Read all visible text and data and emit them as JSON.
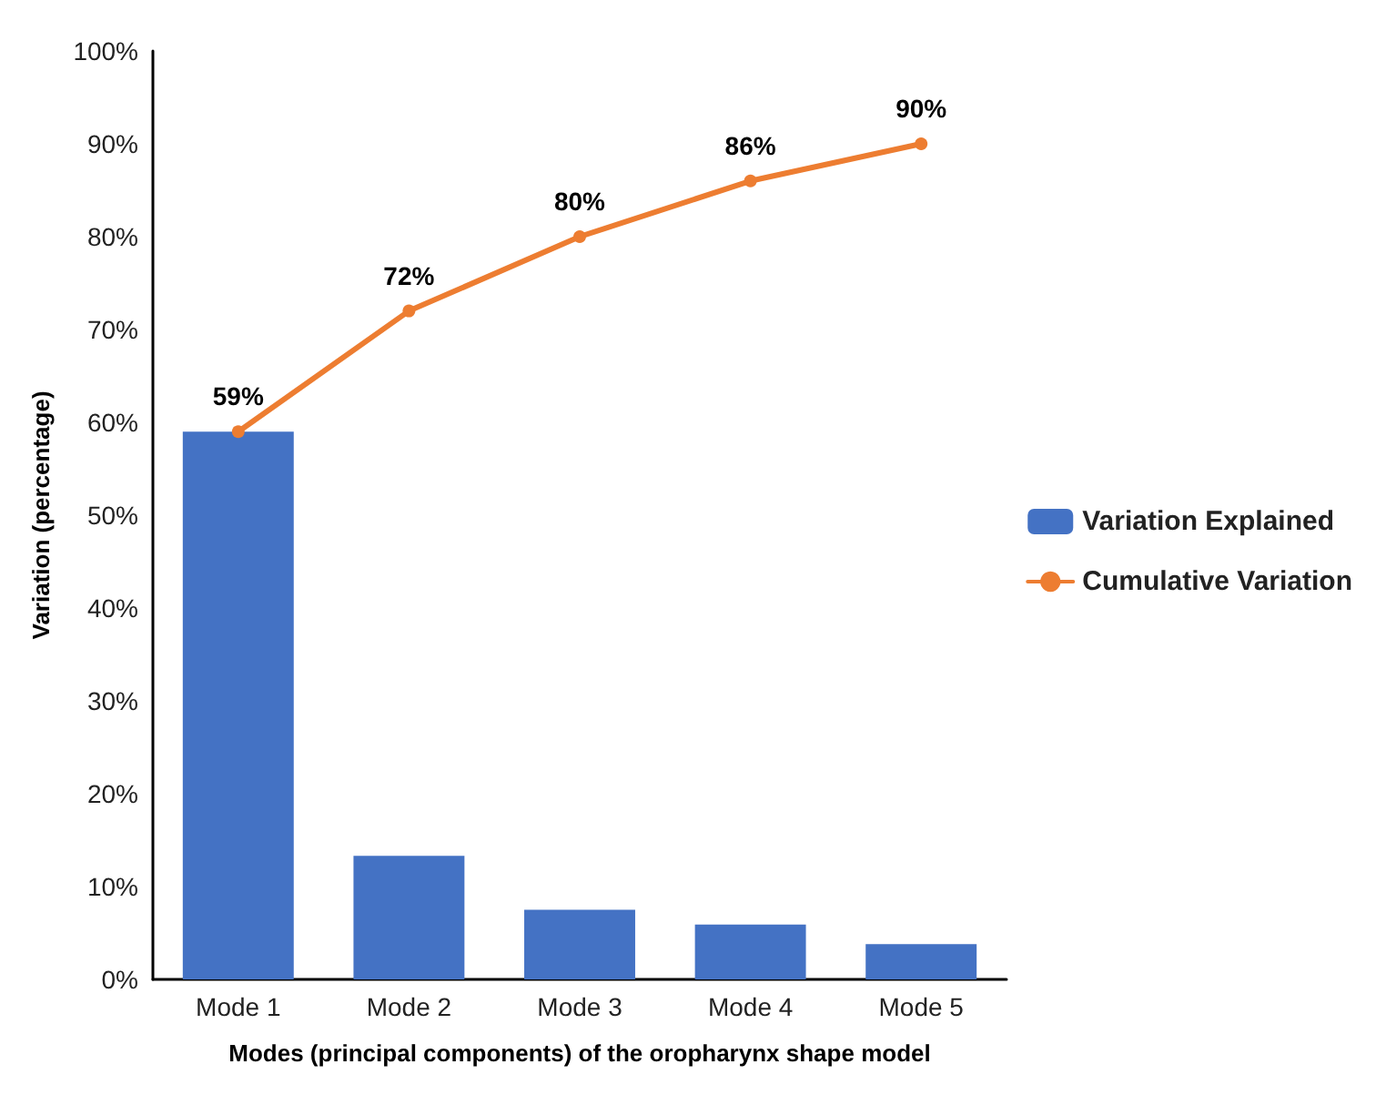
{
  "chart_data": {
    "type": "bar",
    "xlabel": "Modes (principal components) of the oropharynx shape model",
    "ylabel": "Variation (percentage)",
    "categories": [
      "Mode 1",
      "Mode 2",
      "Mode 3",
      "Mode 4",
      "Mode 5"
    ],
    "series": [
      {
        "name": "Variation Explained",
        "color": "#4472c4",
        "values": [
          59,
          13.3,
          7.5,
          5.9,
          3.8
        ]
      },
      {
        "name": "Cumulative Variation",
        "type": "line",
        "color": "#ed7d31",
        "values": [
          59,
          72,
          80,
          86,
          90
        ],
        "value_labels": [
          "59%",
          "72%",
          "80%",
          "86%",
          "90%"
        ],
        "marker": "circle"
      }
    ],
    "ylim": [
      0,
      100
    ],
    "yticks": [
      {
        "value": 0,
        "label": "0%"
      },
      {
        "value": 10,
        "label": "10%"
      },
      {
        "value": 20,
        "label": "20%"
      },
      {
        "value": 30,
        "label": "30%"
      },
      {
        "value": 40,
        "label": "40%"
      },
      {
        "value": 50,
        "label": "50%"
      },
      {
        "value": 60,
        "label": "60%"
      },
      {
        "value": 70,
        "label": "70%"
      },
      {
        "value": 80,
        "label": "80%"
      },
      {
        "value": 90,
        "label": "90%"
      },
      {
        "value": 100,
        "label": "100%"
      }
    ],
    "grid": false,
    "legend": "right"
  }
}
